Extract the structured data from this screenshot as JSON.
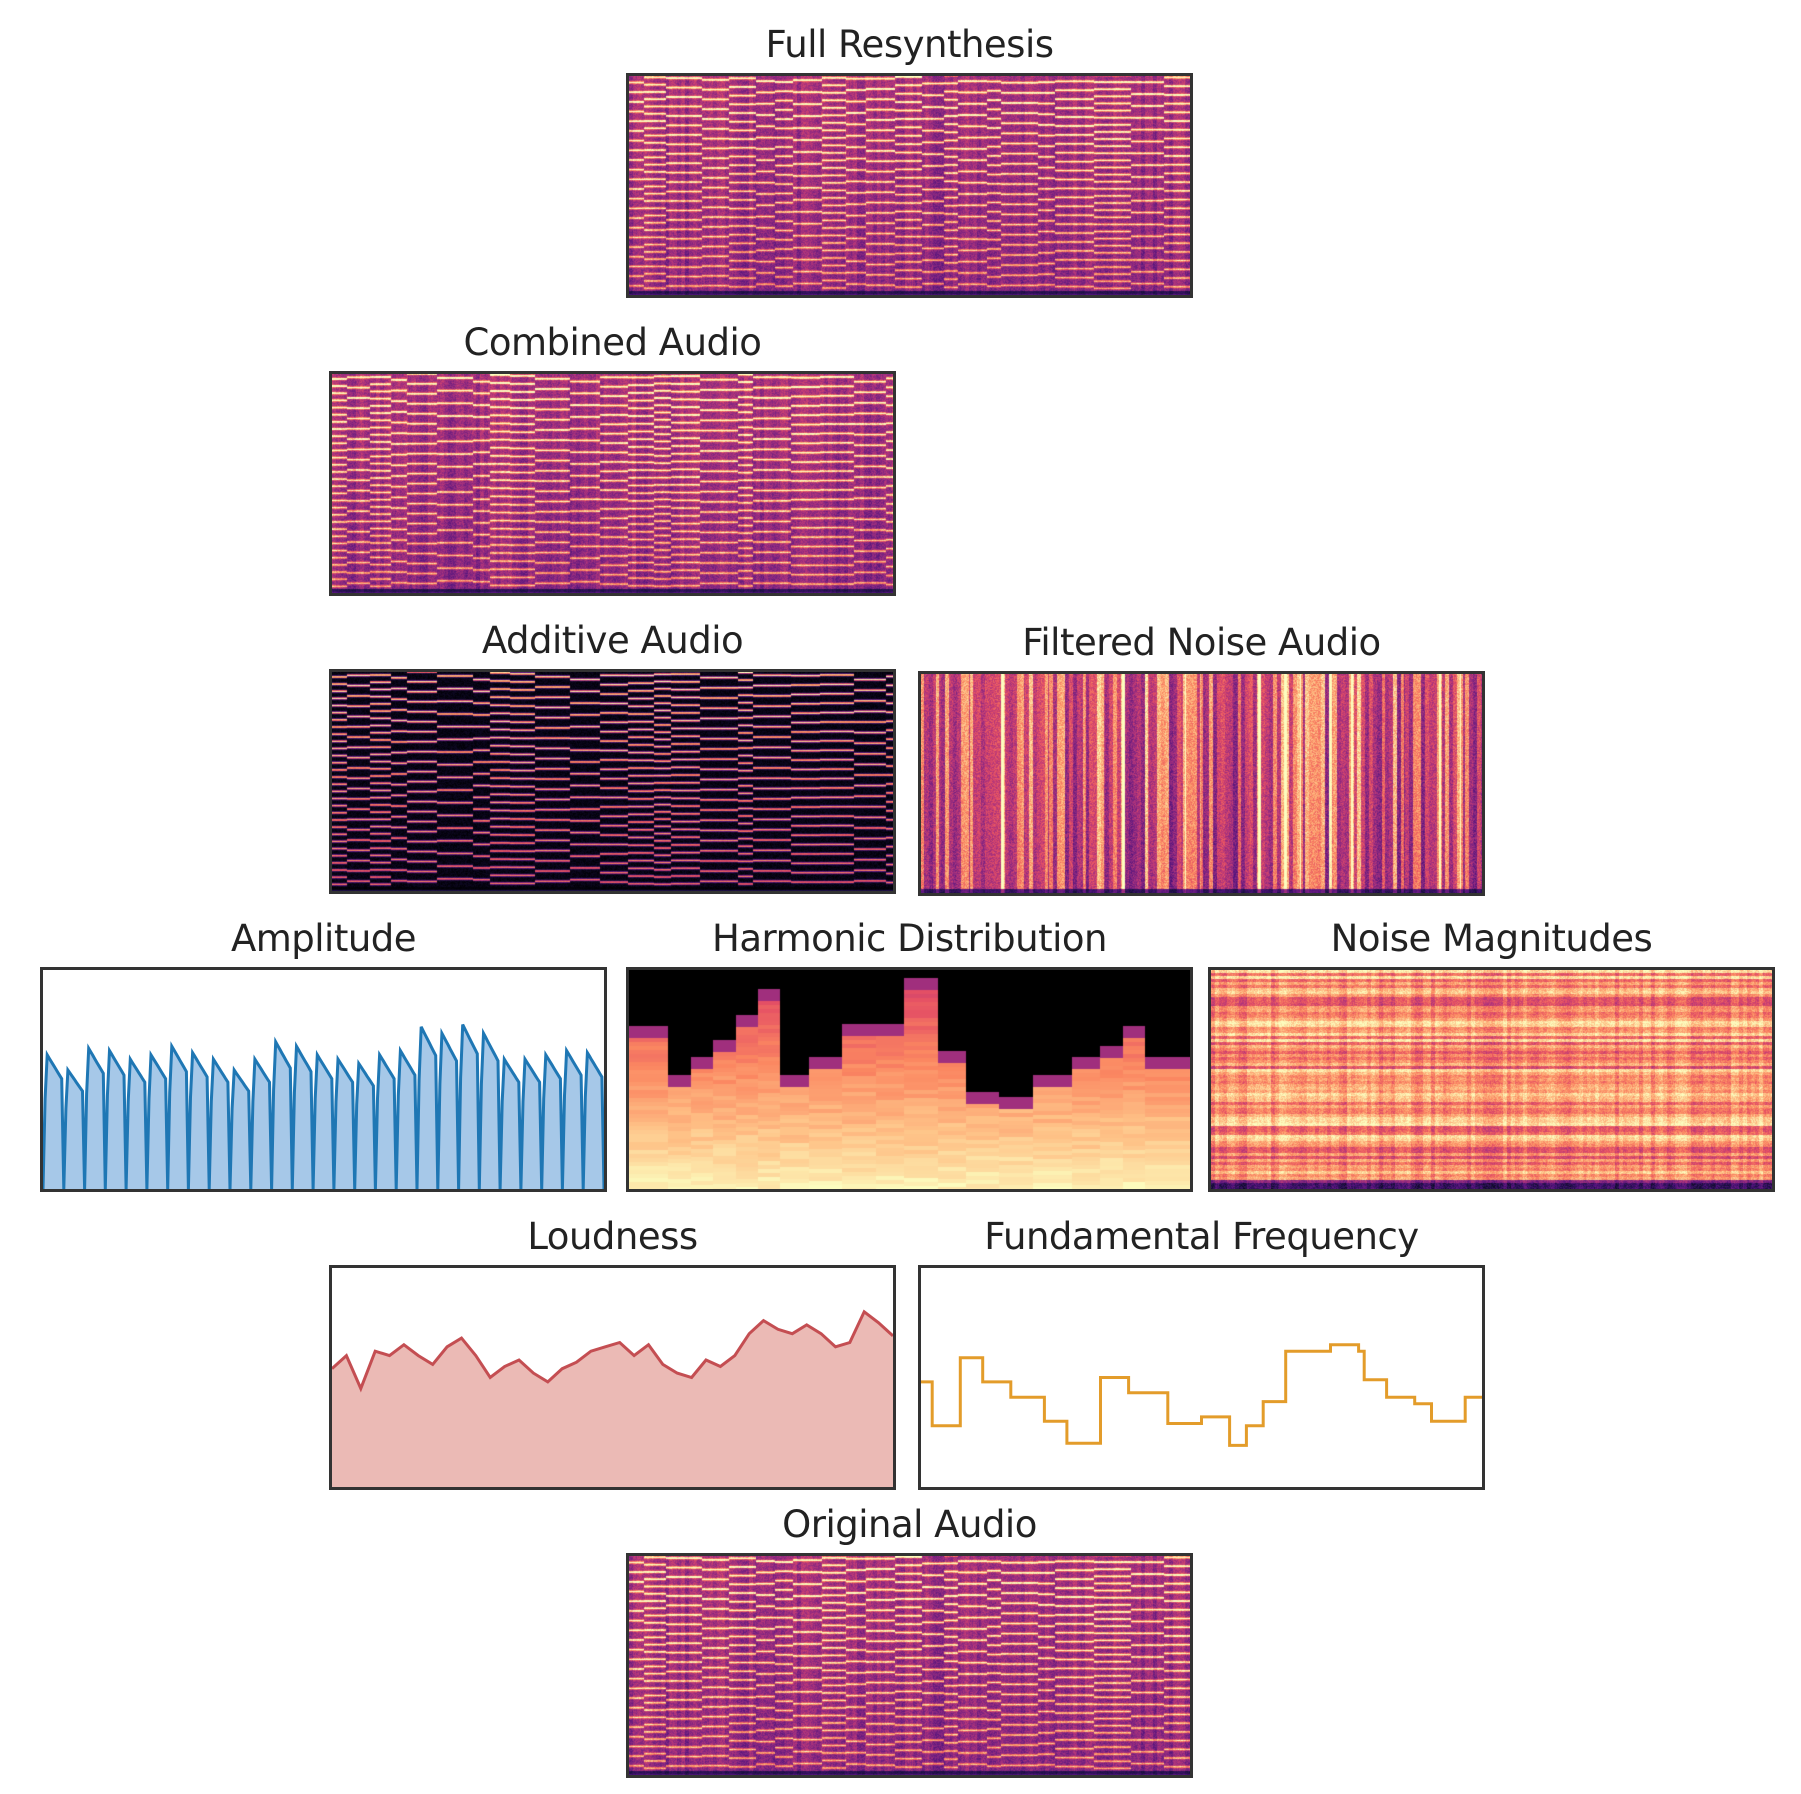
{
  "panels": {
    "full_resynthesis": {
      "title": "Full Resynthesis",
      "kind": "spectrogram-mix"
    },
    "combined_audio": {
      "title": "Combined Audio",
      "kind": "spectrogram-mix"
    },
    "additive_audio": {
      "title": "Additive Audio",
      "kind": "spectrogram-harmonic"
    },
    "filtered_noise_audio": {
      "title": "Filtered Noise Audio",
      "kind": "spectrogram-noise"
    },
    "amplitude": {
      "title": "Amplitude",
      "kind": "area"
    },
    "harmonic_distribution": {
      "title": "Harmonic Distribution",
      "kind": "heatmap"
    },
    "noise_magnitudes": {
      "title": "Noise Magnitudes",
      "kind": "heatmap"
    },
    "loudness": {
      "title": "Loudness",
      "kind": "area"
    },
    "fundamental_frequency": {
      "title": "Fundamental Frequency",
      "kind": "line"
    },
    "original_audio": {
      "title": "Original Audio",
      "kind": "spectrogram-mix"
    }
  },
  "colors": {
    "amplitude_line": "#1f77b4",
    "amplitude_fill": "#a6c8e8",
    "loudness_line": "#c44e52",
    "loudness_fill": "#ebbab5",
    "f0_line": "#e39c2a",
    "frame": "#333333",
    "colormap": "magma"
  },
  "chart_data": [
    {
      "type": "area",
      "panel": "amplitude",
      "note_peaks": [
        0.62,
        0.55,
        0.65,
        0.64,
        0.6,
        0.62,
        0.66,
        0.63,
        0.6,
        0.55,
        0.6,
        0.68,
        0.66,
        0.62,
        0.6,
        0.58,
        0.62,
        0.64,
        0.75,
        0.72,
        0.76,
        0.72,
        0.6,
        0.6,
        0.62,
        0.64,
        0.63
      ],
      "ylim": [
        0,
        1
      ]
    },
    {
      "type": "area",
      "panel": "loudness",
      "values": [
        0.54,
        0.6,
        0.45,
        0.62,
        0.6,
        0.65,
        0.6,
        0.56,
        0.64,
        0.68,
        0.6,
        0.5,
        0.55,
        0.58,
        0.52,
        0.48,
        0.54,
        0.57,
        0.62,
        0.64,
        0.66,
        0.6,
        0.65,
        0.56,
        0.52,
        0.5,
        0.58,
        0.55,
        0.6,
        0.7,
        0.76,
        0.72,
        0.7,
        0.74,
        0.7,
        0.64,
        0.66,
        0.8,
        0.75,
        0.69
      ],
      "ylim": [
        0,
        1
      ]
    },
    {
      "type": "line",
      "panel": "fundamental_frequency",
      "steps": [
        [
          0,
          0.48
        ],
        [
          0.02,
          0.28
        ],
        [
          0.07,
          0.59
        ],
        [
          0.11,
          0.48
        ],
        [
          0.16,
          0.41
        ],
        [
          0.22,
          0.3
        ],
        [
          0.26,
          0.2
        ],
        [
          0.32,
          0.5
        ],
        [
          0.37,
          0.43
        ],
        [
          0.44,
          0.29
        ],
        [
          0.5,
          0.32
        ],
        [
          0.55,
          0.19
        ],
        [
          0.58,
          0.28
        ],
        [
          0.61,
          0.39
        ],
        [
          0.65,
          0.62
        ],
        [
          0.73,
          0.65
        ],
        [
          0.78,
          0.62
        ],
        [
          0.79,
          0.49
        ],
        [
          0.83,
          0.41
        ],
        [
          0.88,
          0.38
        ],
        [
          0.91,
          0.3
        ],
        [
          0.97,
          0.41
        ]
      ],
      "ylim": [
        0,
        1
      ]
    },
    {
      "type": "heatmap",
      "panel": "harmonic_distribution",
      "column_heights": [
        0.74,
        0.52,
        0.6,
        0.68,
        0.79,
        0.91,
        0.52,
        0.6,
        0.75,
        0.75,
        0.96,
        0.63,
        0.44,
        0.42,
        0.52,
        0.6,
        0.65,
        0.74,
        0.6
      ],
      "column_edges": [
        0,
        0.07,
        0.11,
        0.15,
        0.19,
        0.23,
        0.27,
        0.32,
        0.38,
        0.44,
        0.49,
        0.55,
        0.6,
        0.66,
        0.72,
        0.79,
        0.84,
        0.88,
        0.92,
        1
      ]
    }
  ]
}
